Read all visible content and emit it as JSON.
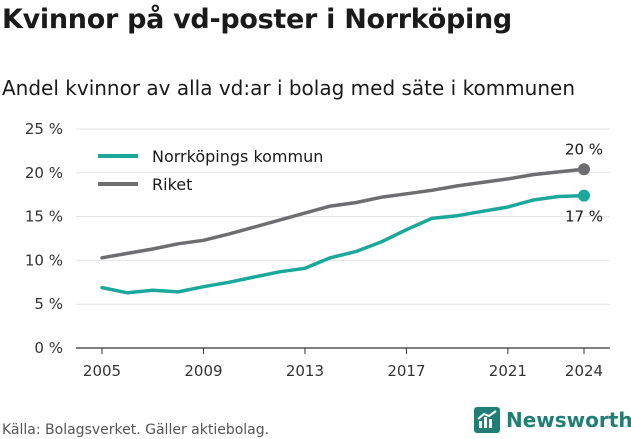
{
  "title": "Kvinnor på vd-poster i Norrköping",
  "subtitle": "Andel kvinnor av alla vd:ar i bolag med säte i kommunen",
  "source": "Källa: Bolagsverket. Gäller aktiebolag.",
  "brand": {
    "name": "Newsworthy",
    "color": "#1f7f75"
  },
  "chart_data": {
    "type": "line",
    "xlim": [
      2005,
      2024
    ],
    "ylim": [
      0,
      25
    ],
    "yticks": [
      0,
      5,
      10,
      15,
      20,
      25
    ],
    "ytick_labels": [
      "0 %",
      "5 %",
      "10 %",
      "15 %",
      "20 %",
      "25 %"
    ],
    "xticks": [
      2005,
      2009,
      2013,
      2017,
      2021,
      2024
    ],
    "xtick_labels": [
      "2005",
      "2009",
      "2013",
      "2017",
      "2021",
      "2024"
    ],
    "grid": "horizontal",
    "legend_position": "top-left",
    "x": [
      2005,
      2006,
      2007,
      2008,
      2009,
      2010,
      2011,
      2012,
      2013,
      2014,
      2015,
      2016,
      2017,
      2018,
      2019,
      2020,
      2021,
      2022,
      2023,
      2024
    ],
    "series": [
      {
        "name": "Norrköpings kommun",
        "color": "#1aa89a",
        "values": [
          6.9,
          6.3,
          6.6,
          6.4,
          7.0,
          7.5,
          8.1,
          8.7,
          9.1,
          10.3,
          11.0,
          12.1,
          13.5,
          14.8,
          15.1,
          15.6,
          16.1,
          16.9,
          17.3,
          17.4
        ],
        "end_label": "17 %"
      },
      {
        "name": "Riket",
        "color": "#6e6e72",
        "values": [
          10.3,
          10.8,
          11.3,
          11.9,
          12.3,
          13.0,
          13.8,
          14.6,
          15.4,
          16.2,
          16.6,
          17.2,
          17.6,
          18.0,
          18.5,
          18.9,
          19.3,
          19.8,
          20.1,
          20.4
        ],
        "end_label": "20 %"
      }
    ]
  }
}
